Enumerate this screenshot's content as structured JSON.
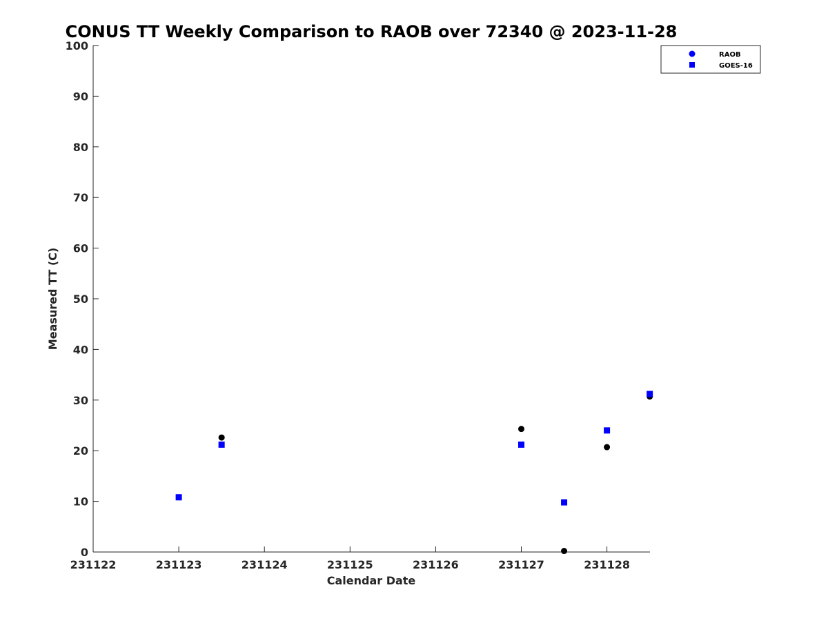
{
  "chart_data": {
    "type": "scatter",
    "title": "CONUS TT Weekly Comparison to RAOB over 72340 @ 2023-11-28",
    "xlabel": "Calendar Date",
    "ylabel": "Measured TT (C)",
    "xlim": [
      231122,
      231128.5
    ],
    "ylim": [
      0,
      100
    ],
    "xticks": [
      231122,
      231123,
      231124,
      231125,
      231126,
      231127,
      231128
    ],
    "xtick_labels": [
      "231122",
      "231123",
      "231124",
      "231125",
      "231126",
      "231127",
      "231128"
    ],
    "yticks": [
      0,
      10,
      20,
      30,
      40,
      50,
      60,
      70,
      80,
      90,
      100
    ],
    "ytick_labels": [
      "0",
      "10",
      "20",
      "30",
      "40",
      "50",
      "60",
      "70",
      "80",
      "90",
      "100"
    ],
    "grid": false,
    "legend_position": "top-right",
    "series": [
      {
        "name": "RAOB",
        "marker": "circle",
        "legend_color": "#0000ff",
        "color": "#000000",
        "x": [
          231123.5,
          231127,
          231127.5,
          231128,
          231128.5
        ],
        "y": [
          22.6,
          24.3,
          0.2,
          20.7,
          30.7
        ]
      },
      {
        "name": "GOES-16",
        "marker": "square",
        "legend_color": "#0000ff",
        "color": "#0000ff",
        "x": [
          231123,
          231123.5,
          231127,
          231127.5,
          231128,
          231128.5
        ],
        "y": [
          10.8,
          21.2,
          21.2,
          9.8,
          24.0,
          31.2
        ]
      }
    ]
  }
}
